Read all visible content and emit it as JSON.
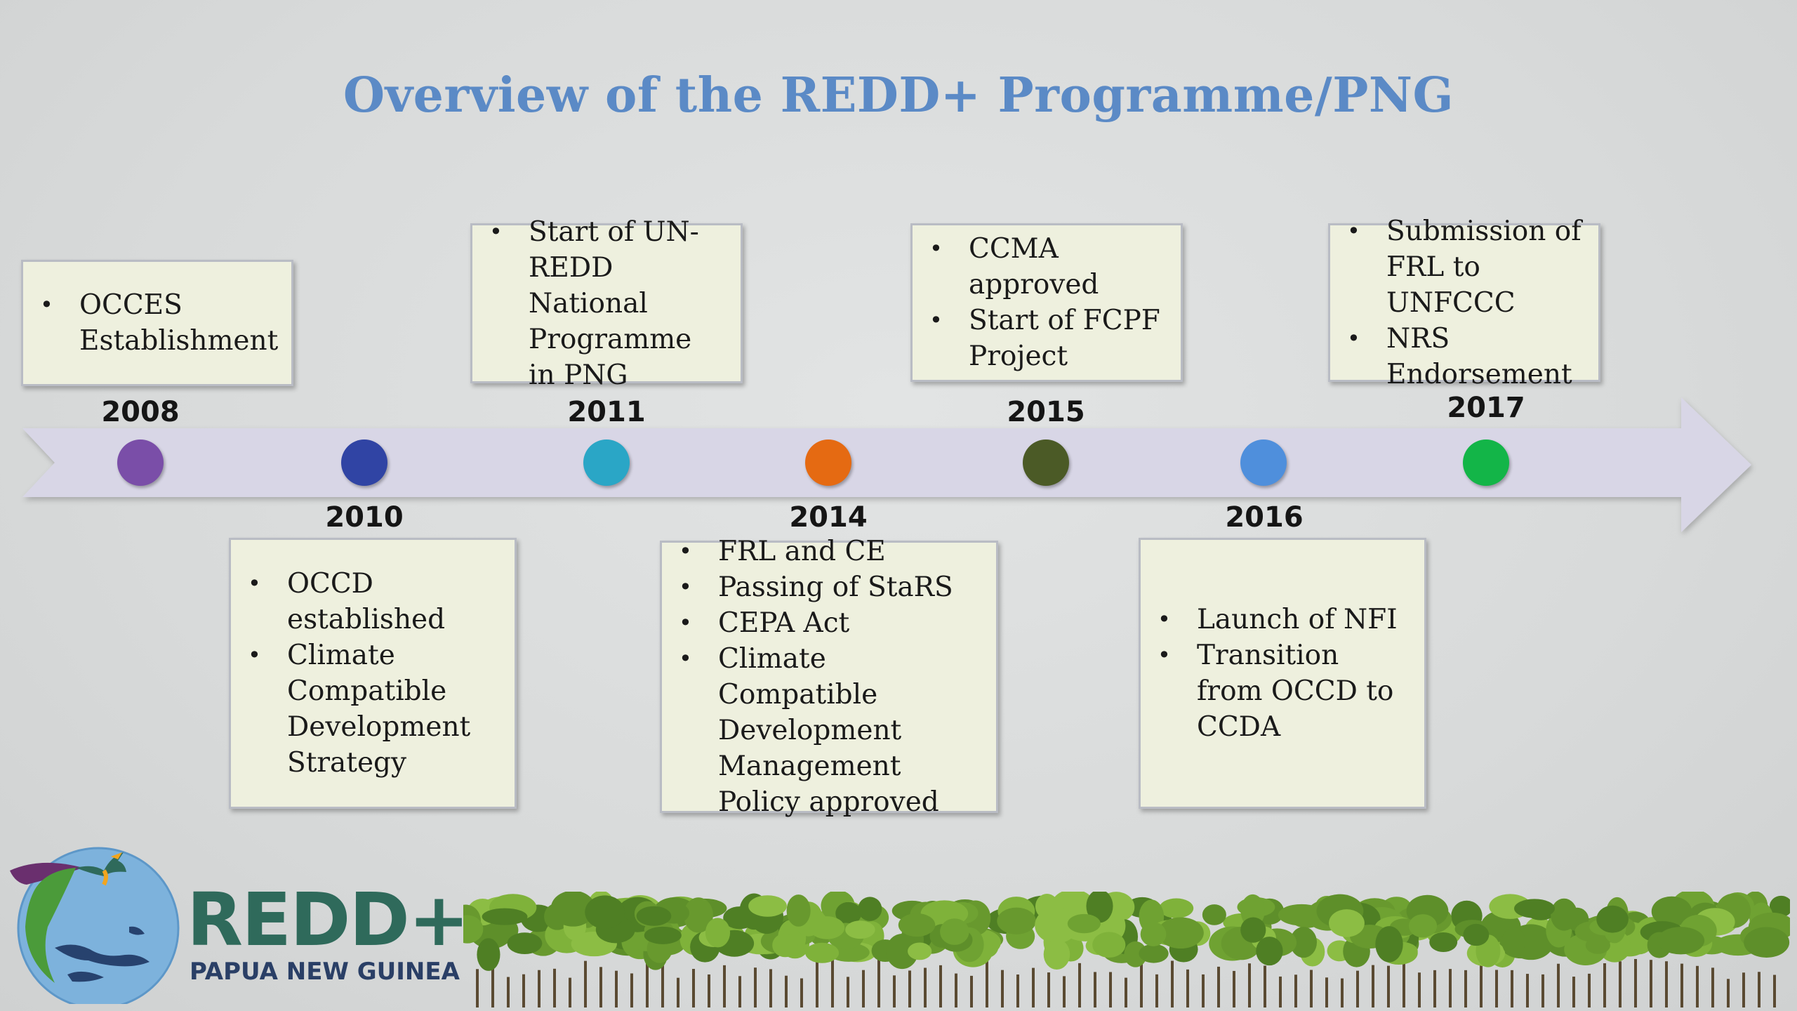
{
  "title": "Overview of the REDD+ Programme/PNG",
  "colors": {
    "title": "#5b8ac6",
    "arrow": "#d8d6e6",
    "box_fill": "#eef0de"
  },
  "timeline": [
    {
      "year": "2008",
      "color": "#7a4ea8",
      "position": "above",
      "items": [
        "OCCES Establishment"
      ]
    },
    {
      "year": "2010",
      "color": "#3044a4",
      "position": "below",
      "items": [
        "OCCD established",
        "Climate Compatible Development Strategy"
      ]
    },
    {
      "year": "2011",
      "color": "#2aa6c6",
      "position": "above",
      "items": [
        "Start of UN-REDD National Programme in PNG"
      ]
    },
    {
      "year": "2014",
      "color": "#e56a12",
      "position": "below",
      "items": [
        "FRL and CE",
        "Passing of StaRS",
        "CEPA Act",
        "Climate Compatible Development Management Policy approved"
      ]
    },
    {
      "year": "2015",
      "color": "#4b5a26",
      "position": "above",
      "items": [
        "CCMA approved",
        "Start of FCPF Project"
      ]
    },
    {
      "year": "2016",
      "color": "#4f8fdc",
      "position": "below",
      "items": [
        "Launch of NFI",
        "Transition from OCCD to CCDA"
      ]
    },
    {
      "year": "2017",
      "color": "#13b548",
      "position": "above",
      "items": [
        "Submission of FRL to UNFCCC",
        "NRS Endorsement"
      ]
    }
  ],
  "logo": {
    "name": "REDD+",
    "subtitle": "PAPUA NEW GUINEA"
  }
}
